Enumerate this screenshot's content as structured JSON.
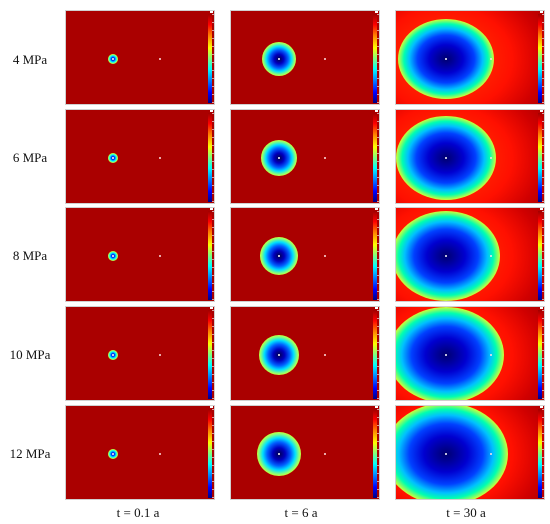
{
  "rows": [
    {
      "label": "4 MPa"
    },
    {
      "label": "6 MPa"
    },
    {
      "label": "8 MPa"
    },
    {
      "label": "10 MPa"
    },
    {
      "label": "12 MPa"
    }
  ],
  "columns": [
    {
      "label": "t = 0.1 a"
    },
    {
      "label": "t = 6 a"
    },
    {
      "label": "t = 30 a"
    }
  ],
  "colormap": [
    "#000080",
    "#0000ff",
    "#0080ff",
    "#00ffff",
    "#80ff80",
    "#ffff00",
    "#ff8000",
    "#ff0000",
    "#aa0000"
  ]
}
